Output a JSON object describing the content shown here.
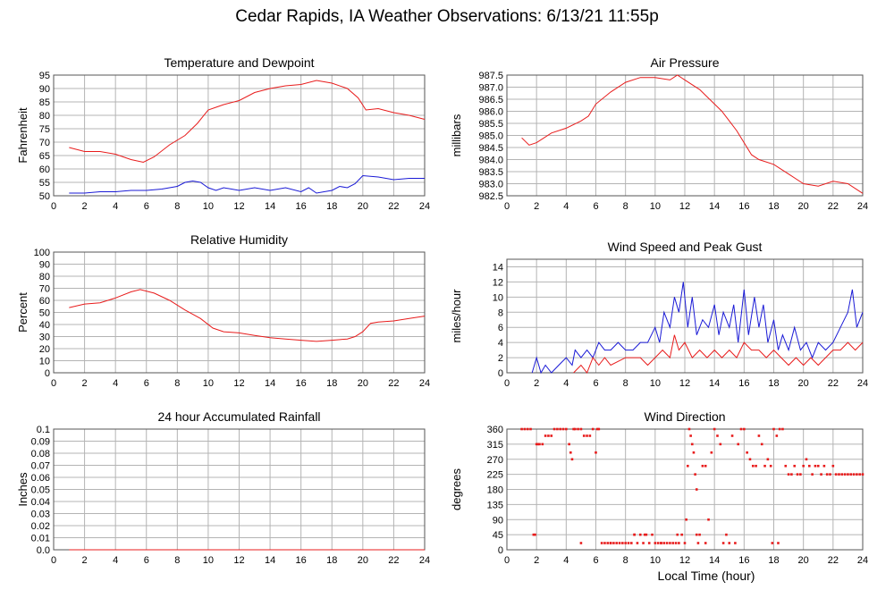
{
  "page_title": "Cedar Rapids, IA Weather Observations: 6/13/21 11:55p",
  "x_axis_label": "Local Time (hour)",
  "colors": {
    "red": "#e81c1c",
    "blue": "#1a1ad6",
    "grid": "#b4b4b4",
    "axis": "#555555"
  },
  "chart_data": [
    {
      "id": "temp",
      "type": "line",
      "title": "Temperature and Dewpoint",
      "xlabel": "",
      "ylabel": "Fahrenheit",
      "xlim": [
        0,
        24
      ],
      "ylim": [
        50,
        95
      ],
      "x_ticks": [
        2,
        4,
        6,
        8,
        10,
        12,
        14,
        16,
        18,
        20,
        22,
        24
      ],
      "y_ticks": [
        50,
        55,
        60,
        65,
        70,
        75,
        80,
        85,
        90,
        95
      ],
      "grid": true,
      "series": [
        {
          "color": "#e81c1c",
          "x": [
            1,
            2,
            3,
            4,
            5,
            5.8,
            6.5,
            7.5,
            8.5,
            9.3,
            10,
            10.5,
            11,
            12,
            13,
            14,
            15,
            16,
            17,
            18,
            19,
            19.7,
            20.2,
            21,
            22,
            23,
            24
          ],
          "y": [
            68,
            66.5,
            66.5,
            65.5,
            63.5,
            62.5,
            64.5,
            69,
            72.5,
            77,
            82,
            83,
            84,
            85.5,
            88.5,
            90,
            91,
            91.5,
            93,
            92,
            90,
            86.5,
            82,
            82.5,
            81,
            80,
            78.5
          ]
        },
        {
          "color": "#1a1ad6",
          "x": [
            1,
            2,
            3,
            4,
            5,
            6,
            7,
            8,
            8.5,
            9,
            9.5,
            10,
            10.5,
            11,
            12,
            13,
            14,
            15,
            16,
            16.5,
            17,
            18,
            18.5,
            19,
            19.5,
            20,
            21,
            22,
            23,
            24
          ],
          "y": [
            51,
            51,
            51.5,
            51.5,
            52,
            52,
            52.5,
            53.5,
            55,
            55.5,
            55,
            53,
            52,
            53,
            52,
            53,
            52,
            53,
            51.5,
            53,
            51,
            52,
            53.5,
            53,
            54.5,
            57.5,
            57,
            56,
            56.5,
            56.5
          ]
        }
      ]
    },
    {
      "id": "pressure",
      "type": "line",
      "title": "Air Pressure",
      "xlabel": "",
      "ylabel": "millibars",
      "xlim": [
        0,
        24
      ],
      "ylim": [
        982.5,
        987.5
      ],
      "x_ticks": [
        2,
        4,
        6,
        8,
        10,
        12,
        14,
        16,
        18,
        20,
        22,
        24
      ],
      "y_ticks": [
        "982.5",
        "983.0",
        "983.5",
        "984.0",
        "984.5",
        "985.0",
        "985.5",
        "986.0",
        "986.5",
        "987.0",
        "987.5"
      ],
      "grid": true,
      "series": [
        {
          "color": "#e81c1c",
          "x": [
            1,
            1.5,
            2,
            3,
            4,
            5,
            5.5,
            6,
            7,
            8,
            9,
            10,
            11,
            11.5,
            12,
            13,
            14,
            14.5,
            15,
            15.5,
            16,
            16.5,
            17,
            18,
            19,
            20,
            21,
            22,
            23,
            24
          ],
          "y": [
            984.9,
            984.6,
            984.7,
            985.1,
            985.3,
            985.6,
            985.8,
            986.3,
            986.8,
            987.2,
            987.4,
            987.4,
            987.3,
            987.5,
            987.3,
            986.9,
            986.3,
            986.0,
            985.6,
            985.2,
            984.7,
            984.2,
            984.0,
            983.8,
            983.4,
            983.0,
            982.9,
            983.1,
            983.0,
            982.6
          ]
        }
      ]
    },
    {
      "id": "humidity",
      "type": "line",
      "title": "Relative Humidity",
      "xlabel": "",
      "ylabel": "Percent",
      "xlim": [
        0,
        24
      ],
      "ylim": [
        0,
        100
      ],
      "x_ticks": [
        2,
        4,
        6,
        8,
        10,
        12,
        14,
        16,
        18,
        20,
        22,
        24
      ],
      "y_ticks": [
        0,
        10,
        20,
        30,
        40,
        50,
        60,
        70,
        80,
        90,
        100
      ],
      "grid": true,
      "series": [
        {
          "color": "#e81c1c",
          "x": [
            1,
            2,
            3,
            4,
            5,
            5.6,
            6.5,
            7.5,
            8.5,
            9.5,
            10.3,
            11,
            12,
            13,
            14,
            15,
            16,
            17,
            18,
            19,
            19.5,
            20,
            20.5,
            21,
            22,
            23,
            24
          ],
          "y": [
            54,
            57,
            58,
            62,
            67,
            69,
            66,
            60,
            52,
            45,
            37,
            34,
            33,
            31,
            29,
            28,
            27,
            26,
            27,
            28,
            30,
            34,
            41,
            42,
            43,
            45,
            47
          ]
        }
      ]
    },
    {
      "id": "wind",
      "type": "line",
      "title": "Wind Speed and Peak Gust",
      "xlabel": "",
      "ylabel": "miles/hour",
      "xlim": [
        0,
        24
      ],
      "ylim": [
        0,
        15
      ],
      "x_ticks": [
        2,
        4,
        6,
        8,
        10,
        12,
        14,
        16,
        18,
        20,
        22,
        24
      ],
      "y_ticks": [
        0,
        2,
        4,
        6,
        8,
        10,
        12,
        14
      ],
      "grid": true,
      "series": [
        {
          "color": "#1a1ad6",
          "x": [
            1.7,
            2,
            2.3,
            2.6,
            3,
            3.5,
            4,
            4.4,
            4.6,
            5,
            5.4,
            5.8,
            6.2,
            6.6,
            7,
            7.5,
            8,
            8.5,
            9,
            9.5,
            10,
            10.3,
            10.6,
            11,
            11.3,
            11.6,
            11.9,
            12.2,
            12.5,
            12.8,
            13.2,
            13.6,
            14,
            14.3,
            14.6,
            15,
            15.3,
            15.6,
            16,
            16.3,
            16.7,
            17,
            17.3,
            17.6,
            18,
            18.3,
            18.6,
            19,
            19.4,
            19.8,
            20.2,
            20.6,
            21,
            21.5,
            22,
            22.5,
            23,
            23.3,
            23.6,
            24
          ],
          "y": [
            0,
            2,
            0,
            1,
            0,
            1,
            2,
            1,
            3,
            2,
            3,
            2,
            4,
            3,
            3,
            4,
            3,
            3,
            4,
            4,
            6,
            4,
            8,
            6,
            10,
            8,
            12,
            6,
            10,
            5,
            7,
            6,
            9,
            5,
            8,
            6,
            9,
            4,
            11,
            5,
            10,
            6,
            9,
            4,
            7,
            3,
            5,
            3,
            6,
            3,
            4,
            2,
            4,
            3,
            4,
            6,
            8,
            11,
            6,
            8
          ]
        },
        {
          "color": "#e81c1c",
          "x": [
            4.5,
            5,
            5.4,
            5.8,
            6.2,
            6.6,
            7,
            8,
            9,
            9.5,
            10,
            10.5,
            11,
            11.3,
            11.6,
            12,
            12.5,
            13,
            13.5,
            14,
            14.5,
            15,
            15.5,
            16,
            16.5,
            17,
            17.5,
            18,
            18.5,
            19,
            19.5,
            20,
            20.5,
            21,
            21.5,
            22,
            22.5,
            23,
            23.5,
            24
          ],
          "y": [
            0,
            1,
            0,
            2,
            1,
            2,
            1,
            2,
            2,
            1,
            2,
            3,
            2,
            5,
            3,
            4,
            2,
            3,
            2,
            3,
            2,
            3,
            2,
            4,
            3,
            3,
            2,
            3,
            2,
            1,
            2,
            1,
            2,
            1,
            2,
            3,
            3,
            4,
            3,
            4
          ]
        }
      ]
    },
    {
      "id": "rain",
      "type": "line",
      "title": "24 hour Accumulated Rainfall",
      "xlabel": "",
      "ylabel": "Inches",
      "xlim": [
        0,
        24
      ],
      "ylim": [
        0,
        0.1
      ],
      "x_ticks": [
        2,
        4,
        6,
        8,
        10,
        12,
        14,
        16,
        18,
        20,
        22,
        24
      ],
      "y_ticks": [
        "0.0",
        "0.01",
        "0.02",
        "0.03",
        "0.04",
        "0.05",
        "0.06",
        "0.07",
        "0.08",
        "0.09",
        "0.1"
      ],
      "grid": true,
      "series": [
        {
          "color": "#e81c1c",
          "x": [
            1,
            24
          ],
          "y": [
            0,
            0
          ]
        }
      ]
    },
    {
      "id": "direction",
      "type": "scatter",
      "title": "Wind Direction",
      "xlabel": "Local Time (hour)",
      "ylabel": "degrees",
      "xlim": [
        0,
        24
      ],
      "ylim": [
        0,
        360
      ],
      "x_ticks": [
        2,
        4,
        6,
        8,
        10,
        12,
        14,
        16,
        18,
        20,
        22,
        24
      ],
      "y_ticks": [
        0,
        45,
        90,
        135,
        180,
        225,
        270,
        315,
        360
      ],
      "grid": true,
      "series": [
        {
          "color": "#e81c1c",
          "x": [
            1,
            1.2,
            1.4,
            1.6,
            1.8,
            1.9,
            2.0,
            2.1,
            2.2,
            2.4,
            2.6,
            2.8,
            3.0,
            3.2,
            3.4,
            3.6,
            3.8,
            4.0,
            4.2,
            4.3,
            4.4,
            4.5,
            4.6,
            4.8,
            5.0,
            5.2,
            5.4,
            5.6,
            5.8,
            6.0,
            6.1,
            6.2,
            6.4,
            6.6,
            6.8,
            7.0,
            7.2,
            7.4,
            7.6,
            7.8,
            8.0,
            8.2,
            8.4,
            8.6,
            8.8,
            9.0,
            9.2,
            9.4,
            9.6,
            9.8,
            10.0,
            10.2,
            10.4,
            10.6,
            10.8,
            11.0,
            11.2,
            11.4,
            11.6,
            11.8,
            12.0,
            12.1,
            12.2,
            12.3,
            12.4,
            12.5,
            12.6,
            12.7,
            12.8,
            12.9,
            13.0,
            13.2,
            13.4,
            13.6,
            13.8,
            14.0,
            14.2,
            14.4,
            14.6,
            14.8,
            15.0,
            15.2,
            15.4,
            15.6,
            15.8,
            16.0,
            16.2,
            16.4,
            16.6,
            16.8,
            17.0,
            17.2,
            17.4,
            17.6,
            17.8,
            18.0,
            18.2,
            18.4,
            18.6,
            18.8,
            19.0,
            19.2,
            19.4,
            19.6,
            19.8,
            20.0,
            20.2,
            20.4,
            20.6,
            20.8,
            21.0,
            21.2,
            21.4,
            21.6,
            21.8,
            22.0,
            22.2,
            22.4,
            22.6,
            22.8,
            23.0,
            23.2,
            23.4,
            23.6,
            23.8,
            24.0,
            5.0,
            7.0,
            8.6,
            9.3,
            10.4,
            11.5,
            12.8,
            13.4,
            17.9,
            18.3
          ],
          "y": [
            360,
            360,
            360,
            360,
            45,
            45,
            315,
            315,
            315,
            315,
            340,
            340,
            340,
            360,
            360,
            360,
            360,
            360,
            315,
            290,
            270,
            360,
            360,
            360,
            360,
            340,
            340,
            340,
            360,
            290,
            360,
            360,
            20,
            20,
            20,
            20,
            20,
            20,
            20,
            20,
            20,
            20,
            20,
            45,
            20,
            45,
            20,
            45,
            20,
            45,
            20,
            20,
            20,
            20,
            20,
            20,
            20,
            20,
            20,
            45,
            20,
            90,
            250,
            360,
            340,
            315,
            290,
            225,
            180,
            20,
            45,
            250,
            250,
            90,
            290,
            360,
            340,
            315,
            20,
            45,
            20,
            340,
            20,
            315,
            360,
            360,
            290,
            270,
            250,
            250,
            340,
            315,
            250,
            270,
            250,
            360,
            340,
            360,
            360,
            250,
            225,
            225,
            250,
            225,
            225,
            250,
            270,
            250,
            225,
            250,
            250,
            225,
            250,
            225,
            225,
            250,
            225,
            225,
            225,
            225,
            225,
            225,
            225,
            225,
            225,
            225,
            20,
            20,
            45,
            45,
            20,
            45,
            45,
            20,
            20,
            20
          ]
        }
      ]
    }
  ]
}
